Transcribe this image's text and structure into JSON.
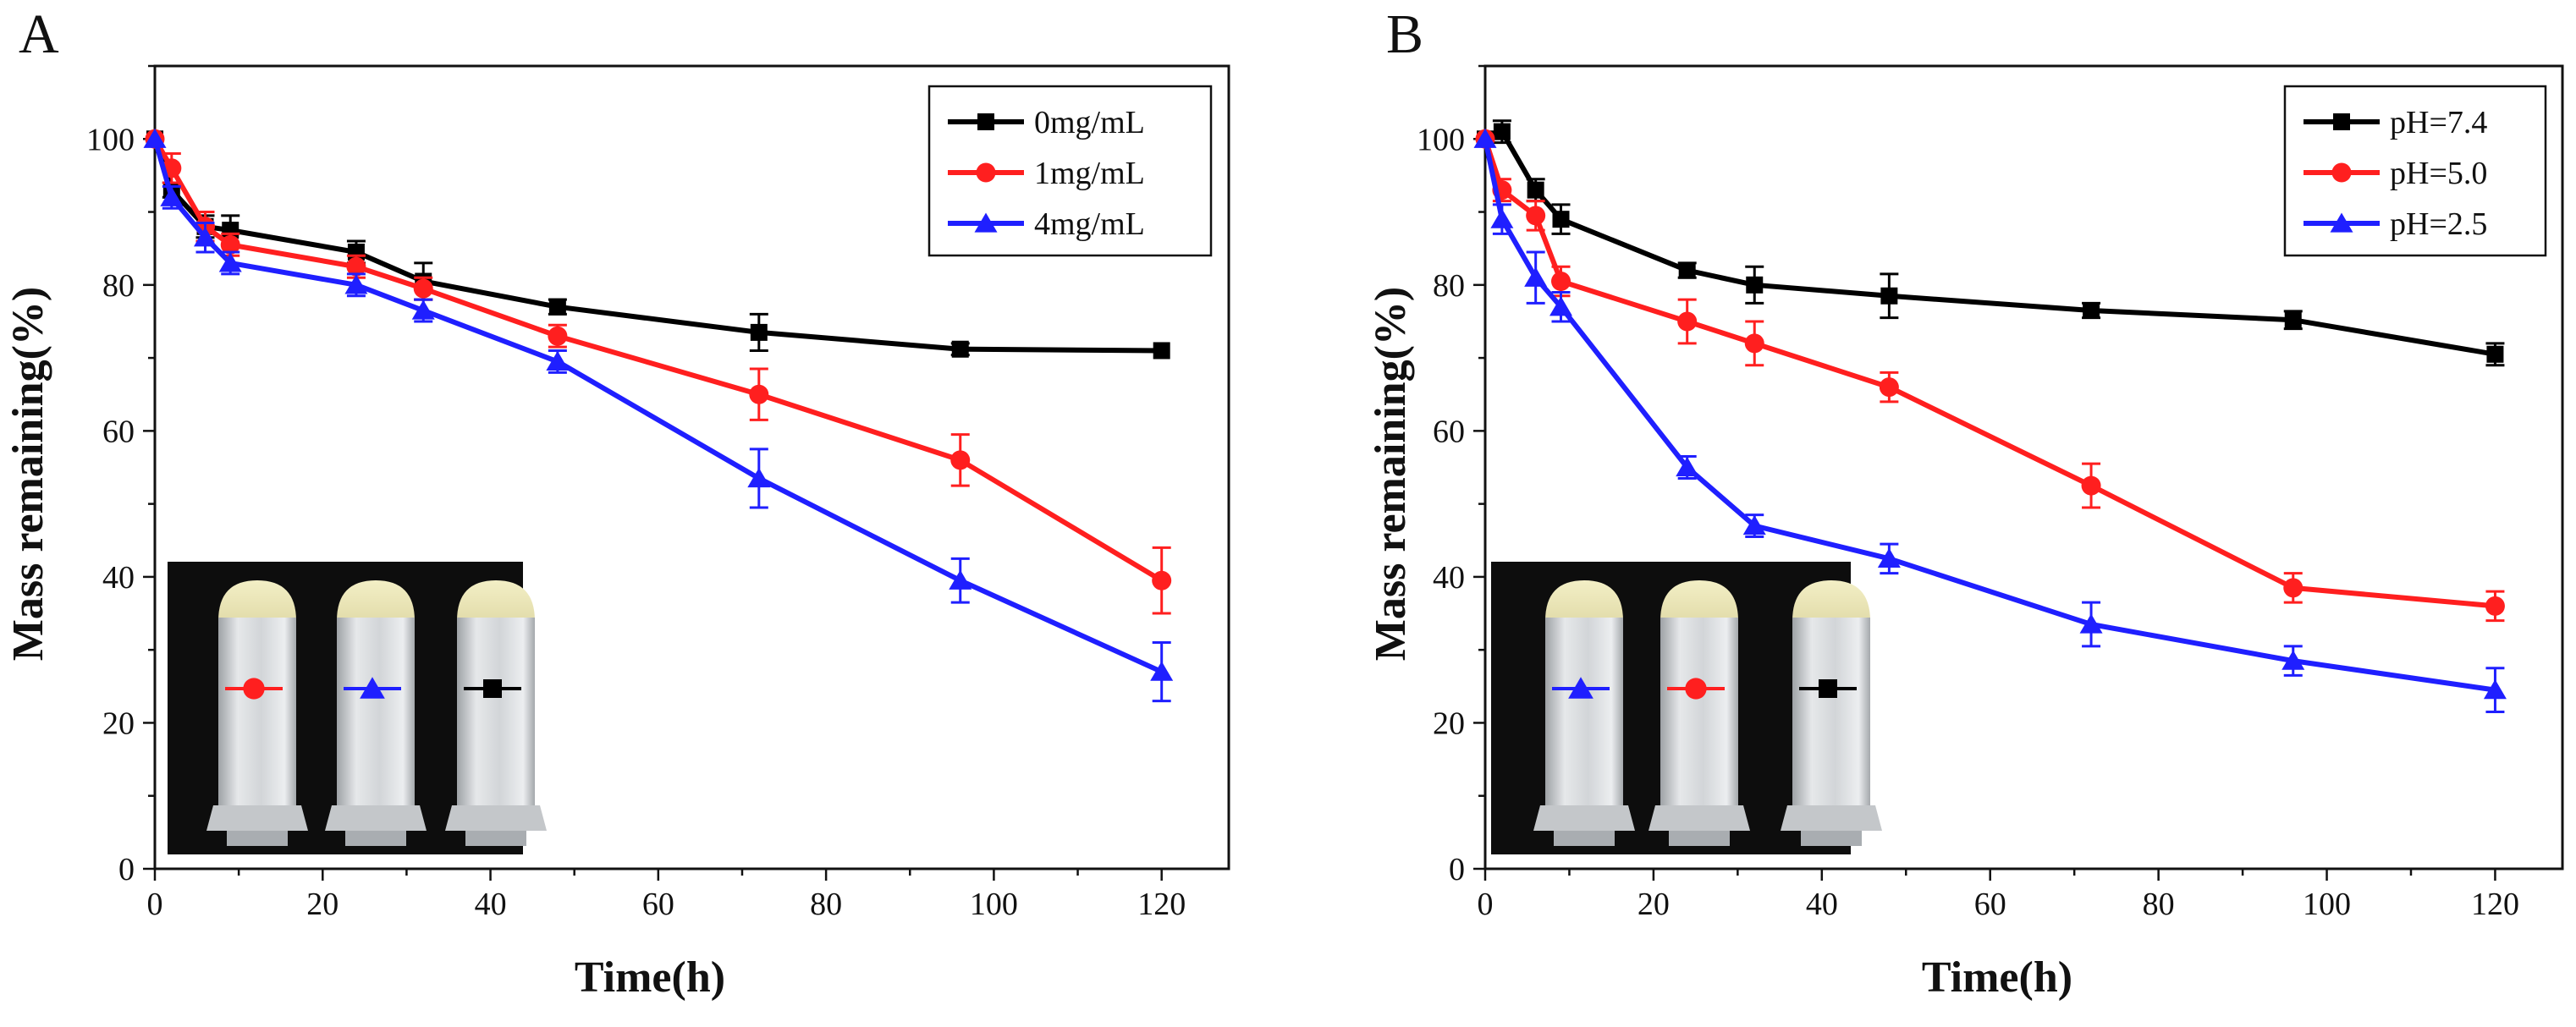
{
  "chart_data": [
    {
      "panel": "A",
      "type": "line",
      "xlabel": "Time(h)",
      "ylabel": "Mass remaining(%)",
      "xlim": [
        0,
        128
      ],
      "ylim": [
        0,
        110
      ],
      "xticks": [
        0,
        20,
        40,
        60,
        80,
        100,
        120
      ],
      "yticks": [
        0,
        20,
        40,
        60,
        80,
        100
      ],
      "legend_position": "top-right",
      "series": [
        {
          "name": "0mg/mL",
          "color": "#000000",
          "marker": "square",
          "x": [
            0,
            2,
            6,
            9,
            24,
            32,
            48,
            72,
            96,
            120
          ],
          "y": [
            100,
            93,
            88,
            87.5,
            84.5,
            80.5,
            77,
            73.5,
            71.2,
            71
          ],
          "err": [
            0.5,
            1.0,
            1.5,
            2.0,
            1.5,
            2.5,
            1.0,
            2.5,
            0.8,
            0.6
          ]
        },
        {
          "name": "1mg/mL",
          "color": "#ff1f1f",
          "marker": "circle",
          "x": [
            0,
            2,
            6,
            9,
            24,
            32,
            48,
            72,
            96,
            120
          ],
          "y": [
            100,
            96,
            88,
            85.5,
            82.5,
            79.5,
            73,
            65,
            56,
            39.5
          ],
          "err": [
            0.5,
            2.0,
            2.0,
            1.5,
            1.5,
            1.5,
            1.5,
            3.5,
            3.5,
            4.5
          ]
        },
        {
          "name": "4mg/mL",
          "color": "#1f1fff",
          "marker": "triangle",
          "x": [
            0,
            2,
            6,
            9,
            24,
            32,
            48,
            72,
            96,
            120
          ],
          "y": [
            100,
            92,
            86.5,
            83,
            80,
            76.5,
            69.5,
            53.5,
            39.5,
            27
          ],
          "err": [
            0.5,
            1.5,
            2.0,
            1.5,
            1.5,
            1.5,
            1.5,
            4.0,
            3.0,
            4.0
          ]
        }
      ],
      "inset": {
        "description": "photo of three gel tubes",
        "tube_markers": [
          {
            "series": "1mg/mL",
            "marker": "circle",
            "color": "#ff1f1f"
          },
          {
            "series": "4mg/mL",
            "marker": "triangle",
            "color": "#1f1fff"
          },
          {
            "series": "0mg/mL",
            "marker": "square",
            "color": "#000000"
          }
        ]
      }
    },
    {
      "panel": "B",
      "type": "line",
      "xlabel": "Time(h)",
      "ylabel": "Mass remaining(%)",
      "xlim": [
        0,
        128
      ],
      "ylim": [
        0,
        110
      ],
      "xticks": [
        0,
        20,
        40,
        60,
        80,
        100,
        120
      ],
      "yticks": [
        0,
        20,
        40,
        60,
        80,
        100
      ],
      "legend_position": "top-right",
      "series": [
        {
          "name": "pH=7.4",
          "color": "#000000",
          "marker": "square",
          "x": [
            0,
            2,
            6,
            9,
            24,
            32,
            48,
            72,
            96,
            120
          ],
          "y": [
            100,
            101,
            93,
            89,
            82,
            80,
            78.5,
            76.5,
            75.2,
            70.5
          ],
          "err": [
            0.5,
            1.5,
            1.5,
            2.0,
            1.0,
            2.5,
            3.0,
            1.0,
            1.2,
            1.5
          ]
        },
        {
          "name": "pH=5.0",
          "color": "#ff1f1f",
          "marker": "circle",
          "x": [
            0,
            2,
            6,
            9,
            24,
            32,
            48,
            72,
            96,
            120
          ],
          "y": [
            100,
            93,
            89.5,
            80.5,
            75,
            72,
            66,
            52.5,
            38.5,
            36
          ],
          "err": [
            0.5,
            1.5,
            2.0,
            2.0,
            3.0,
            3.0,
            2.0,
            3.0,
            2.0,
            2.0
          ]
        },
        {
          "name": "pH=2.5",
          "color": "#1f1fff",
          "marker": "triangle",
          "x": [
            0,
            2,
            6,
            9,
            24,
            32,
            48,
            72,
            96,
            120
          ],
          "y": [
            100,
            89,
            81,
            77,
            55,
            47,
            42.5,
            33.5,
            28.5,
            24.5
          ],
          "err": [
            0.5,
            2.0,
            3.5,
            2.0,
            1.5,
            1.5,
            2.0,
            3.0,
            2.0,
            3.0
          ]
        }
      ],
      "inset": {
        "description": "photo of three gel tubes",
        "tube_markers": [
          {
            "series": "pH=2.5",
            "marker": "triangle",
            "color": "#1f1fff"
          },
          {
            "series": "pH=5.0",
            "marker": "circle",
            "color": "#ff1f1f"
          },
          {
            "series": "pH=7.4",
            "marker": "square",
            "color": "#000000"
          }
        ]
      }
    }
  ]
}
